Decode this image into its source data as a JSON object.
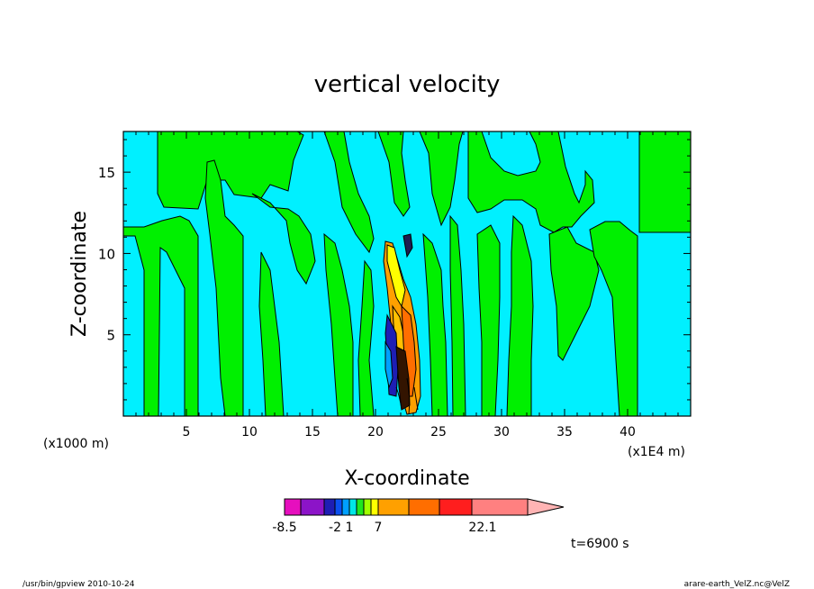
{
  "chart_data": {
    "type": "heatmap",
    "title": "vertical velocity",
    "xlabel": "X-coordinate",
    "ylabel": "Z-coordinate",
    "x_unit_left": "(x1000 m)",
    "x_unit_right": "(x1E4 m)",
    "xlim": [
      0,
      45
    ],
    "ylim": [
      0,
      17.5
    ],
    "x_ticks": [
      5,
      10,
      15,
      20,
      25,
      30,
      35,
      40
    ],
    "y_ticks": [
      5,
      10,
      15
    ],
    "legend": {
      "ticks": [
        "-8.5",
        "-2",
        "1",
        "7",
        "22.1"
      ],
      "colors": [
        "#e60fbe",
        "#8c14c8",
        "#1e1eb4",
        "#0a50f0",
        "#00a0ff",
        "#00e6e6",
        "#1ee61e",
        "#a0ff00",
        "#ffff00",
        "#ffa000",
        "#ff6e00",
        "#ff1e1e",
        "#ff8080",
        "#ffb4b4"
      ]
    },
    "time_label": "t=6900 s",
    "background_colors": {
      "cyan": "#00f0ff",
      "green": "#00f000"
    }
  },
  "footer": {
    "left": "/usr/bin/gpview   2010-10-24",
    "right": "arare-earth_VelZ.nc@VelZ"
  }
}
